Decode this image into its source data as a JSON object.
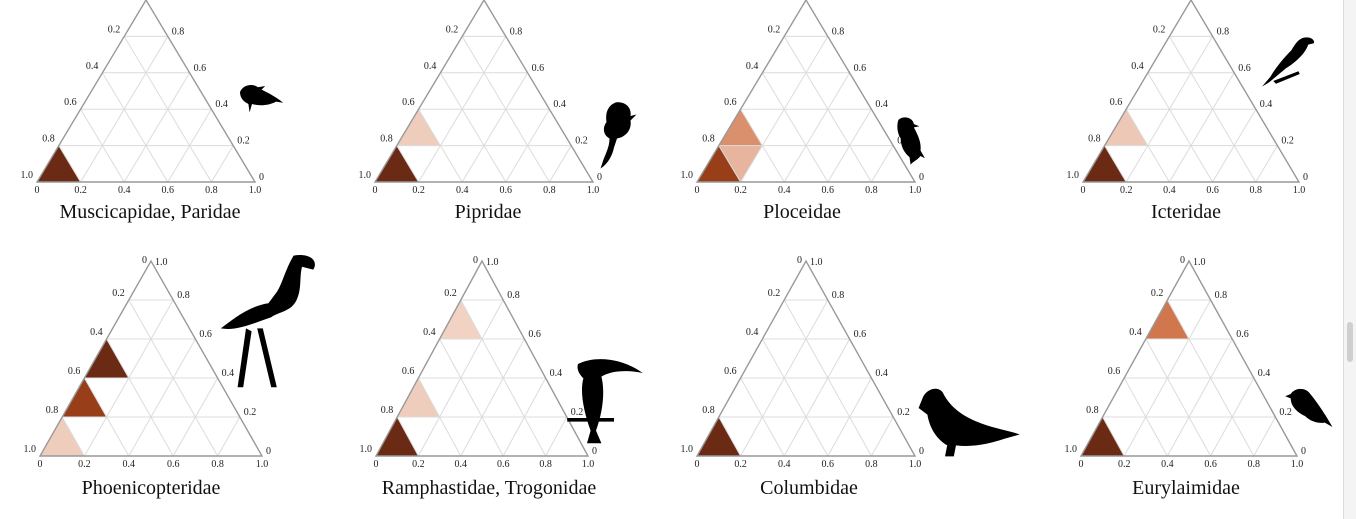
{
  "chart_data": [
    {
      "type": "ternary",
      "title": "Muscicapidae, Paridae",
      "icon": "songbird-silhouette-icon",
      "left_axis_ticks": [
        "0.2",
        "0.4",
        "0.6",
        "0.8",
        "1.0"
      ],
      "right_axis_ticks": [
        "0.8",
        "0.6",
        "0.4",
        "0.2",
        "0"
      ],
      "bottom_axis_ticks": [
        "0",
        "0.2",
        "0.4",
        "0.6",
        "0.8",
        "1.0"
      ],
      "cells": [
        {
          "row": 0,
          "col": 0,
          "up": true,
          "intensity": 1.0
        }
      ]
    },
    {
      "type": "ternary",
      "title": "Pipridae",
      "icon": "manakin-silhouette-icon",
      "left_axis_ticks": [
        "0.2",
        "0.4",
        "0.6",
        "0.8",
        "1.0"
      ],
      "right_axis_ticks": [
        "0.8",
        "0.6",
        "0.4",
        "0.2",
        "0"
      ],
      "bottom_axis_ticks": [
        "0",
        "0.2",
        "0.4",
        "0.6",
        "0.8",
        "1.0"
      ],
      "cells": [
        {
          "row": 0,
          "col": 0,
          "up": true,
          "intensity": 1.0
        },
        {
          "row": 1,
          "col": 0,
          "up": true,
          "intensity": 0.1
        }
      ]
    },
    {
      "type": "ternary",
      "title": "Ploceidae",
      "icon": "weaver-silhouette-icon",
      "left_axis_ticks": [
        "0.2",
        "0.4",
        "0.6",
        "0.8",
        "1.0"
      ],
      "right_axis_ticks": [
        "0.8",
        "0.6",
        "0.4",
        "0.2",
        "0"
      ],
      "bottom_axis_ticks": [
        "0",
        "0.2",
        "0.4",
        "0.6",
        "0.8",
        "1.0"
      ],
      "cells": [
        {
          "row": 0,
          "col": 0,
          "up": true,
          "intensity": 0.8
        },
        {
          "row": 0,
          "col": 0,
          "up": false,
          "intensity": 0.2
        },
        {
          "row": 1,
          "col": 0,
          "up": true,
          "intensity": 0.35
        }
      ]
    },
    {
      "type": "ternary",
      "title": "Icteridae",
      "icon": "blackbird-silhouette-icon",
      "left_axis_ticks": [
        "0.2",
        "0.4",
        "0.6",
        "0.8",
        "1.0"
      ],
      "right_axis_ticks": [
        "0.8",
        "0.6",
        "0.4",
        "0.2",
        "0"
      ],
      "bottom_axis_ticks": [
        "0",
        "0.2",
        "0.4",
        "0.6",
        "0.8",
        "1.0"
      ],
      "cells": [
        {
          "row": 0,
          "col": 0,
          "up": true,
          "intensity": 1.0
        },
        {
          "row": 1,
          "col": 0,
          "up": true,
          "intensity": 0.12
        }
      ]
    },
    {
      "type": "ternary",
      "title": "Phoenicopteridae",
      "icon": "flamingo-silhouette-icon",
      "apex_left": "0",
      "apex_right": "1.0",
      "left_axis_ticks": [
        "0.2",
        "0.4",
        "0.6",
        "0.8",
        "1.0"
      ],
      "right_axis_ticks": [
        "0.8",
        "0.6",
        "0.4",
        "0.2",
        "0"
      ],
      "bottom_axis_ticks": [
        "0",
        "0.2",
        "0.4",
        "0.6",
        "0.8",
        "1.0"
      ],
      "cells": [
        {
          "row": 0,
          "col": 0,
          "up": true,
          "intensity": 0.1
        },
        {
          "row": 1,
          "col": 0,
          "up": true,
          "intensity": 0.8
        },
        {
          "row": 2,
          "col": 0,
          "up": true,
          "intensity": 1.0
        }
      ]
    },
    {
      "type": "ternary",
      "title": "Ramphastidae, Trogonidae",
      "icon": "toucan-silhouette-icon",
      "apex_left": "0",
      "apex_right": "1.0",
      "left_axis_ticks": [
        "0.2",
        "0.4",
        "0.6",
        "0.8",
        "1.0"
      ],
      "right_axis_ticks": [
        "0.8",
        "0.6",
        "0.4",
        "0.2",
        "0"
      ],
      "bottom_axis_ticks": [
        "0",
        "0.2",
        "0.4",
        "0.6",
        "0.8",
        "1.0"
      ],
      "cells": [
        {
          "row": 0,
          "col": 0,
          "up": true,
          "intensity": 1.0
        },
        {
          "row": 1,
          "col": 0,
          "up": true,
          "intensity": 0.1
        },
        {
          "row": 3,
          "col": 0,
          "up": true,
          "intensity": 0.08
        }
      ]
    },
    {
      "type": "ternary",
      "title": "Columbidae",
      "icon": "pigeon-silhouette-icon",
      "apex_left": "0",
      "apex_right": "1.0",
      "left_axis_ticks": [
        "0.2",
        "0.4",
        "0.6",
        "0.8",
        "1.0"
      ],
      "right_axis_ticks": [
        "0.8",
        "0.6",
        "0.4",
        "0.2",
        "0"
      ],
      "bottom_axis_ticks": [
        "0",
        "0.2",
        "0.4",
        "0.6",
        "0.8",
        "1.0"
      ],
      "cells": [
        {
          "row": 0,
          "col": 0,
          "up": true,
          "intensity": 1.0
        }
      ]
    },
    {
      "type": "ternary",
      "title": "Eurylaimidae",
      "icon": "broadbill-silhouette-icon",
      "apex_left": "0",
      "apex_right": "1.0",
      "left_axis_ticks": [
        "0.2",
        "0.4",
        "0.6",
        "0.8",
        "1.0"
      ],
      "right_axis_ticks": [
        "0.8",
        "0.6",
        "0.4",
        "0.2",
        "0"
      ],
      "bottom_axis_ticks": [
        "0",
        "0.2",
        "0.4",
        "0.6",
        "0.8",
        "1.0"
      ],
      "cells": [
        {
          "row": 0,
          "col": 0,
          "up": true,
          "intensity": 1.0
        },
        {
          "row": 3,
          "col": 0,
          "up": true,
          "intensity": 0.45
        }
      ]
    }
  ],
  "colors": {
    "grid": "#dcdcdc",
    "frame": "#999999",
    "low": "#f8e6dc",
    "mid": "#c4521e",
    "high": "#6b2a14",
    "silhouette": "#000000"
  }
}
